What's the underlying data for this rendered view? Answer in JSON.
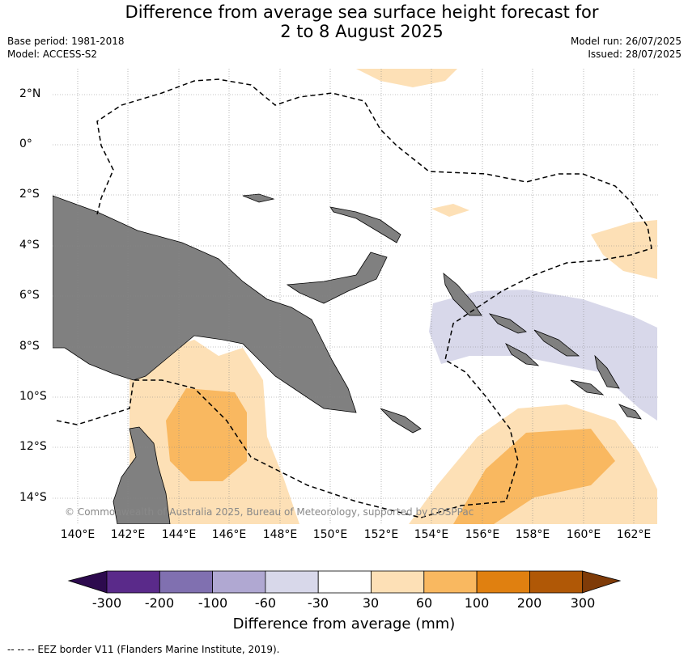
{
  "title_line1": "Difference from average sea surface height forecast for",
  "title_line2": "2 to 8 August 2025",
  "base_period": "Base period: 1981-2018",
  "model": "Model: ACCESS-S2",
  "model_run": "Model run: 26/07/2025",
  "issued": "Issued: 28/07/2025",
  "lat_ticks": [
    "2°N",
    "0°",
    "2°S",
    "4°S",
    "6°S",
    "8°S",
    "10°S",
    "12°S",
    "14°S"
  ],
  "lon_ticks": [
    "140°E",
    "142°E",
    "144°E",
    "146°E",
    "148°E",
    "150°E",
    "152°E",
    "154°E",
    "156°E",
    "158°E",
    "160°E",
    "162°E"
  ],
  "copyright": "© Commonwealth of Australia 2025, Bureau of Meteorology, supported by COSPPac",
  "colorbar": {
    "title": "Difference from average (mm)",
    "labels": [
      "-300",
      "-200",
      "-100",
      "-60",
      "-30",
      "30",
      "60",
      "100",
      "200",
      "300"
    ],
    "colors": [
      "#2d0a4e",
      "#5a2a8a",
      "#8070b0",
      "#b0a8d2",
      "#d8d8ea",
      "#ffffff",
      "#fde0b6",
      "#f9b860",
      "#e08010",
      "#b05806",
      "#7f3b08"
    ]
  },
  "footnote": "--  --  -- EEZ border V11 (Flanders Marine Institute, 2019).",
  "colors": {
    "land": "#808080",
    "gridline": "#888888",
    "eez": "#000000"
  }
}
